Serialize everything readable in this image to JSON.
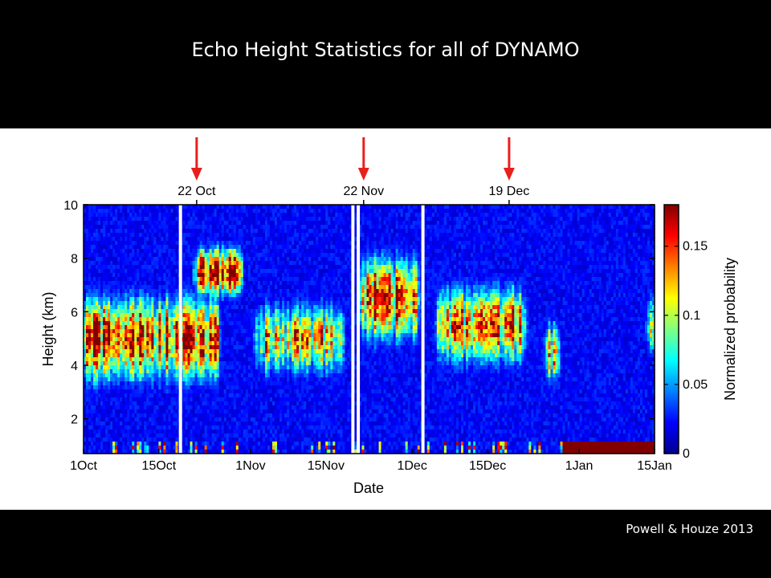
{
  "slide": {
    "title": "Echo Height Statistics for all of DYNAMO",
    "citation": "Powell & Houze 2013"
  },
  "colors": {
    "arrow": "#e8201d",
    "background": "#000000",
    "panel": "#ffffff",
    "colormap": [
      "#00008f",
      "#0000ff",
      "#0080ff",
      "#00ffff",
      "#80ff80",
      "#ffff00",
      "#ff8000",
      "#ff0000",
      "#800000"
    ]
  },
  "chart_data": {
    "type": "heatmap",
    "title": "",
    "xlabel": "Date",
    "ylabel": "Height (km)",
    "colorbar_label": "Normalized probability",
    "x_ticks": [
      "1Oct",
      "15Oct",
      "1Nov",
      "15Nov",
      "1Dec",
      "15Dec",
      "1Jan",
      "15Jan"
    ],
    "x_tick_dates": [
      "2011-10-01",
      "2011-10-15",
      "2011-11-01",
      "2011-11-15",
      "2011-12-01",
      "2011-12-15",
      "2012-01-01",
      "2012-01-15"
    ],
    "xlim": [
      "2011-10-01",
      "2012-01-15"
    ],
    "y_ticks": [
      "2",
      "4",
      "6",
      "8",
      "10"
    ],
    "ylim": [
      0.7,
      10
    ],
    "colorbar_ticks": [
      "0",
      "0.05",
      "0.1",
      "0.15"
    ],
    "colorbar_range": [
      0,
      0.18
    ],
    "top_markers": [
      {
        "label": "22 Oct",
        "date": "2011-10-22"
      },
      {
        "label": "22 Nov",
        "date": "2011-11-22"
      },
      {
        "label": "19 Dec",
        "date": "2011-12-19"
      }
    ],
    "data_gaps": [
      "2011-10-19",
      "2011-11-20",
      "2011-11-21",
      "2011-12-03"
    ],
    "active_periods": [
      {
        "start": "2011-10-01",
        "end": "2011-10-26",
        "peak_height_km": 5.0,
        "spread_km": 1.4,
        "max_probability": 0.15
      },
      {
        "start": "2011-10-22",
        "end": "2011-10-30",
        "peak_height_km": 7.5,
        "spread_km": 0.8,
        "max_probability": 0.17
      },
      {
        "start": "2011-11-02",
        "end": "2011-11-18",
        "peak_height_km": 5.0,
        "spread_km": 1.2,
        "max_probability": 0.11
      },
      {
        "start": "2011-11-22",
        "end": "2011-12-02",
        "peak_height_km": 6.5,
        "spread_km": 1.4,
        "max_probability": 0.15
      },
      {
        "start": "2011-12-06",
        "end": "2011-12-22",
        "peak_height_km": 5.5,
        "spread_km": 1.3,
        "max_probability": 0.13
      },
      {
        "start": "2011-12-26",
        "end": "2011-12-28",
        "peak_height_km": 4.5,
        "spread_km": 1.0,
        "max_probability": 0.11
      },
      {
        "start": "2012-01-14",
        "end": "2012-01-15",
        "peak_height_km": 5.5,
        "spread_km": 1.0,
        "max_probability": 0.15
      }
    ],
    "low_level_max": {
      "start": "2011-12-29",
      "end": "2012-01-15",
      "height_km": 0.9,
      "max_probability": 0.18
    },
    "grid": false,
    "colorbar_placement": "right"
  }
}
